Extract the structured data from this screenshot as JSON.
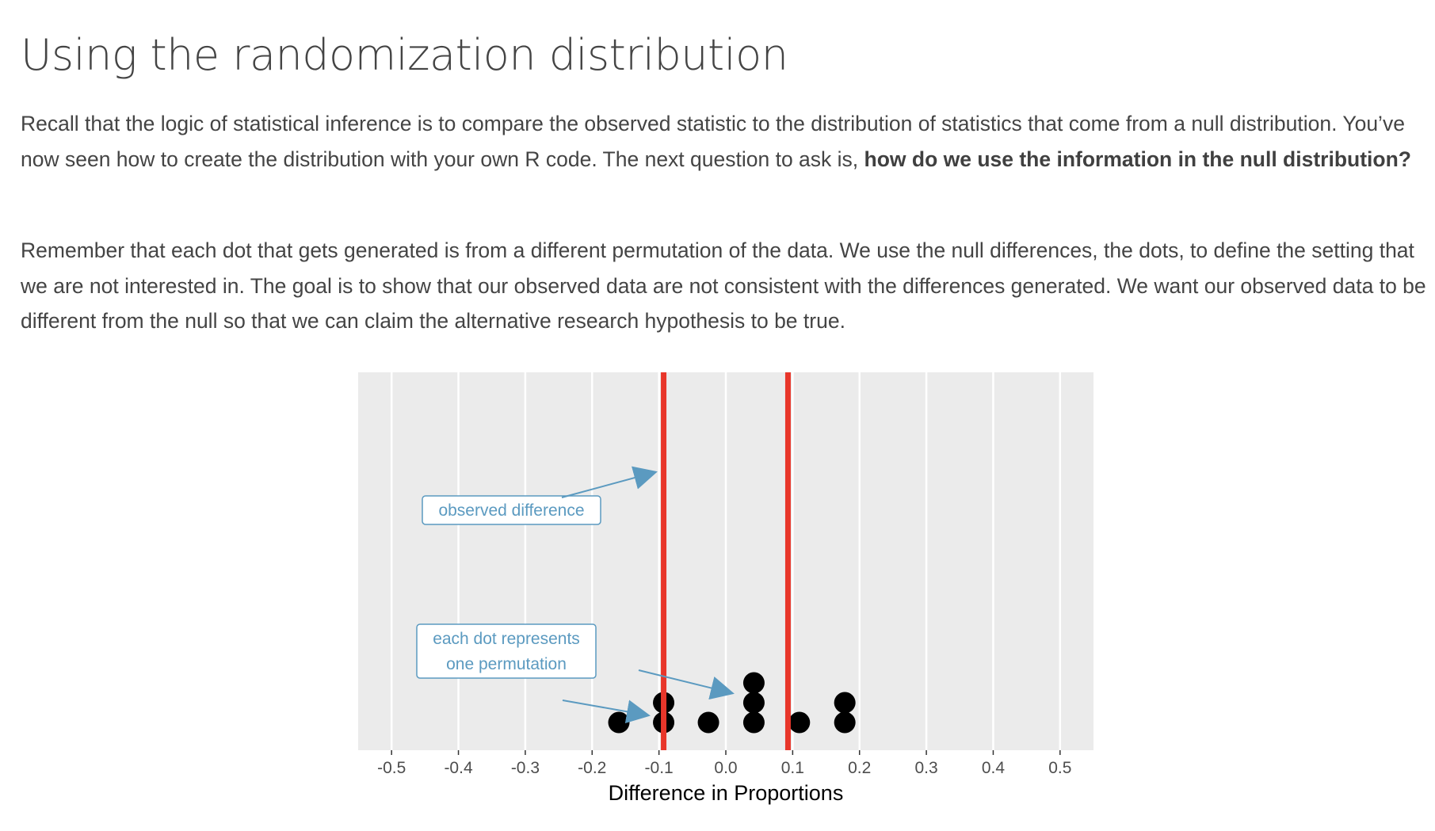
{
  "page": {
    "title": "Using the randomization distribution",
    "paragraph1_a": "Recall that the logic of statistical inference is to compare the observed statistic to the distribution of statistics that come from a null distribution. You’ve now seen how to create the distribution with your own R code. The next question to ask is, ",
    "paragraph1_bold": "how do we use the information in the null distribution?",
    "paragraph2": "Remember that each dot that gets generated is from a different permutation of the data. We use the null differences, the dots, to define the setting that we are not interested in. The goal is to show that our observed data are not consistent with the differences generated. We want our observed data to be different from the null so that we can claim the alternative research hypothesis to be true."
  },
  "colors": {
    "panel_bg": "#EBEBEB",
    "grid": "#FFFFFF",
    "dots": "#000000",
    "observed_line": "#E8362A",
    "annotation": "#5B9AC0",
    "axis_text": "#4D4D4D"
  },
  "chart_data": {
    "type": "scatter",
    "subtype": "dotplot",
    "title": "",
    "xlabel": "Difference in Proportions",
    "ylabel": "",
    "xlim": [
      -0.55,
      0.55
    ],
    "x_ticks": [
      -0.5,
      -0.4,
      -0.3,
      -0.2,
      -0.1,
      0.0,
      0.1,
      0.2,
      0.3,
      0.4,
      0.5
    ],
    "x_tick_labels": [
      "-0.5",
      "-0.4",
      "-0.3",
      "-0.2",
      "-0.1",
      "0.0",
      "0.1",
      "0.2",
      "0.3",
      "0.4",
      "0.5"
    ],
    "grid": true,
    "legend": "none",
    "y_ticks_shown": false,
    "points": [
      {
        "x": -0.16,
        "stack": 1
      },
      {
        "x": -0.093,
        "stack": 1
      },
      {
        "x": -0.093,
        "stack": 2
      },
      {
        "x": -0.026,
        "stack": 1
      },
      {
        "x": 0.042,
        "stack": 1
      },
      {
        "x": 0.042,
        "stack": 2
      },
      {
        "x": 0.042,
        "stack": 3
      },
      {
        "x": 0.11,
        "stack": 1
      },
      {
        "x": 0.178,
        "stack": 1
      },
      {
        "x": 0.178,
        "stack": 2
      }
    ],
    "observed_lines": [
      -0.093,
      0.093
    ],
    "annotations": [
      {
        "label": "observed difference",
        "lines": [
          "observed difference"
        ]
      },
      {
        "label": "each dot represents one permutation",
        "lines": [
          "each dot represents",
          "one permutation"
        ]
      }
    ]
  }
}
